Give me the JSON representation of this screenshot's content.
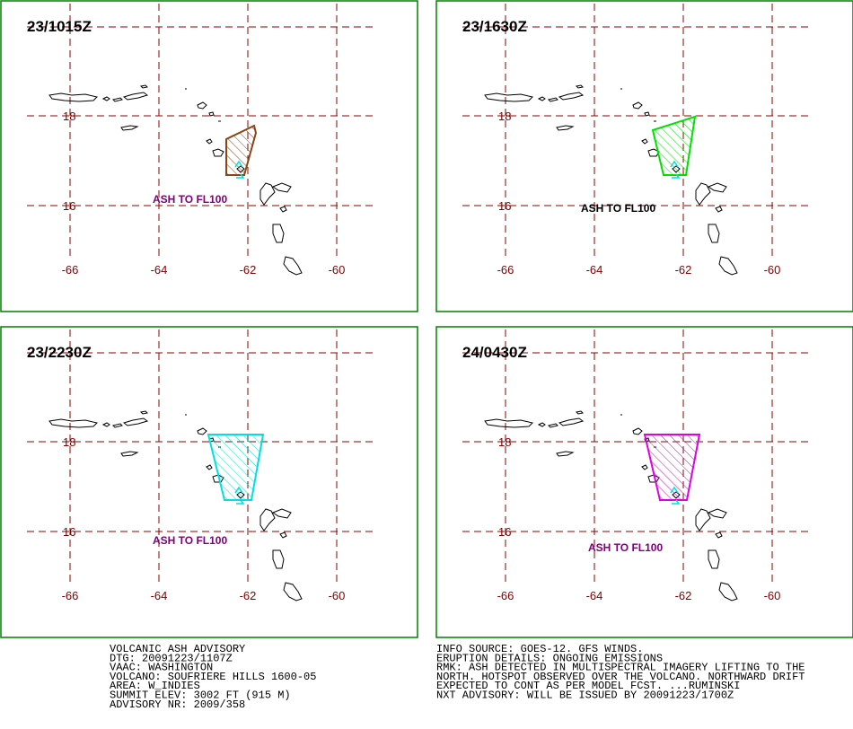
{
  "panels": [
    {
      "time": "23/1015Z",
      "ash_label": "ASH TO FL100"
    },
    {
      "time": "23/1630Z",
      "ash_label": "ASH TO FL100"
    },
    {
      "time": "23/2230Z",
      "ash_label": "ASH TO FL100"
    },
    {
      "time": "24/0430Z",
      "ash_label": "ASH TO FL100"
    }
  ],
  "latitude_labels": [
    "18",
    "16"
  ],
  "longitude_labels": [
    "-66",
    "-64",
    "-62",
    "-60"
  ],
  "advisory_left": [
    "VOLCANIC ASH ADVISORY",
    "DTG: 20091223/1107Z",
    "VAAC: WASHINGTON",
    "VOLCANO: SOUFRIERE HILLS 1600-05",
    "AREA: W_INDIES",
    "SUMMIT ELEV: 3002 FT (915 M)",
    "ADVISORY NR: 2009/358"
  ],
  "advisory_right": [
    "INFO SOURCE: GOES-12. GFS WINDS.",
    "ERUPTION DETAILS: ONGOING EMISSIONS",
    "RMK: ASH DETECTED IN MULTISPECTRAL IMAGERY LIFTING TO THE",
    "NORTH. HOTSPOT OBSERVED OVER THE VOLCANO. NORTHWARD DRIFT",
    "EXPECTED TO CONT AS PER MODEL FCST. ...RUMINSKI",
    "NXT ADVISORY: WILL BE ISSUED BY 20091223/1700Z"
  ]
}
